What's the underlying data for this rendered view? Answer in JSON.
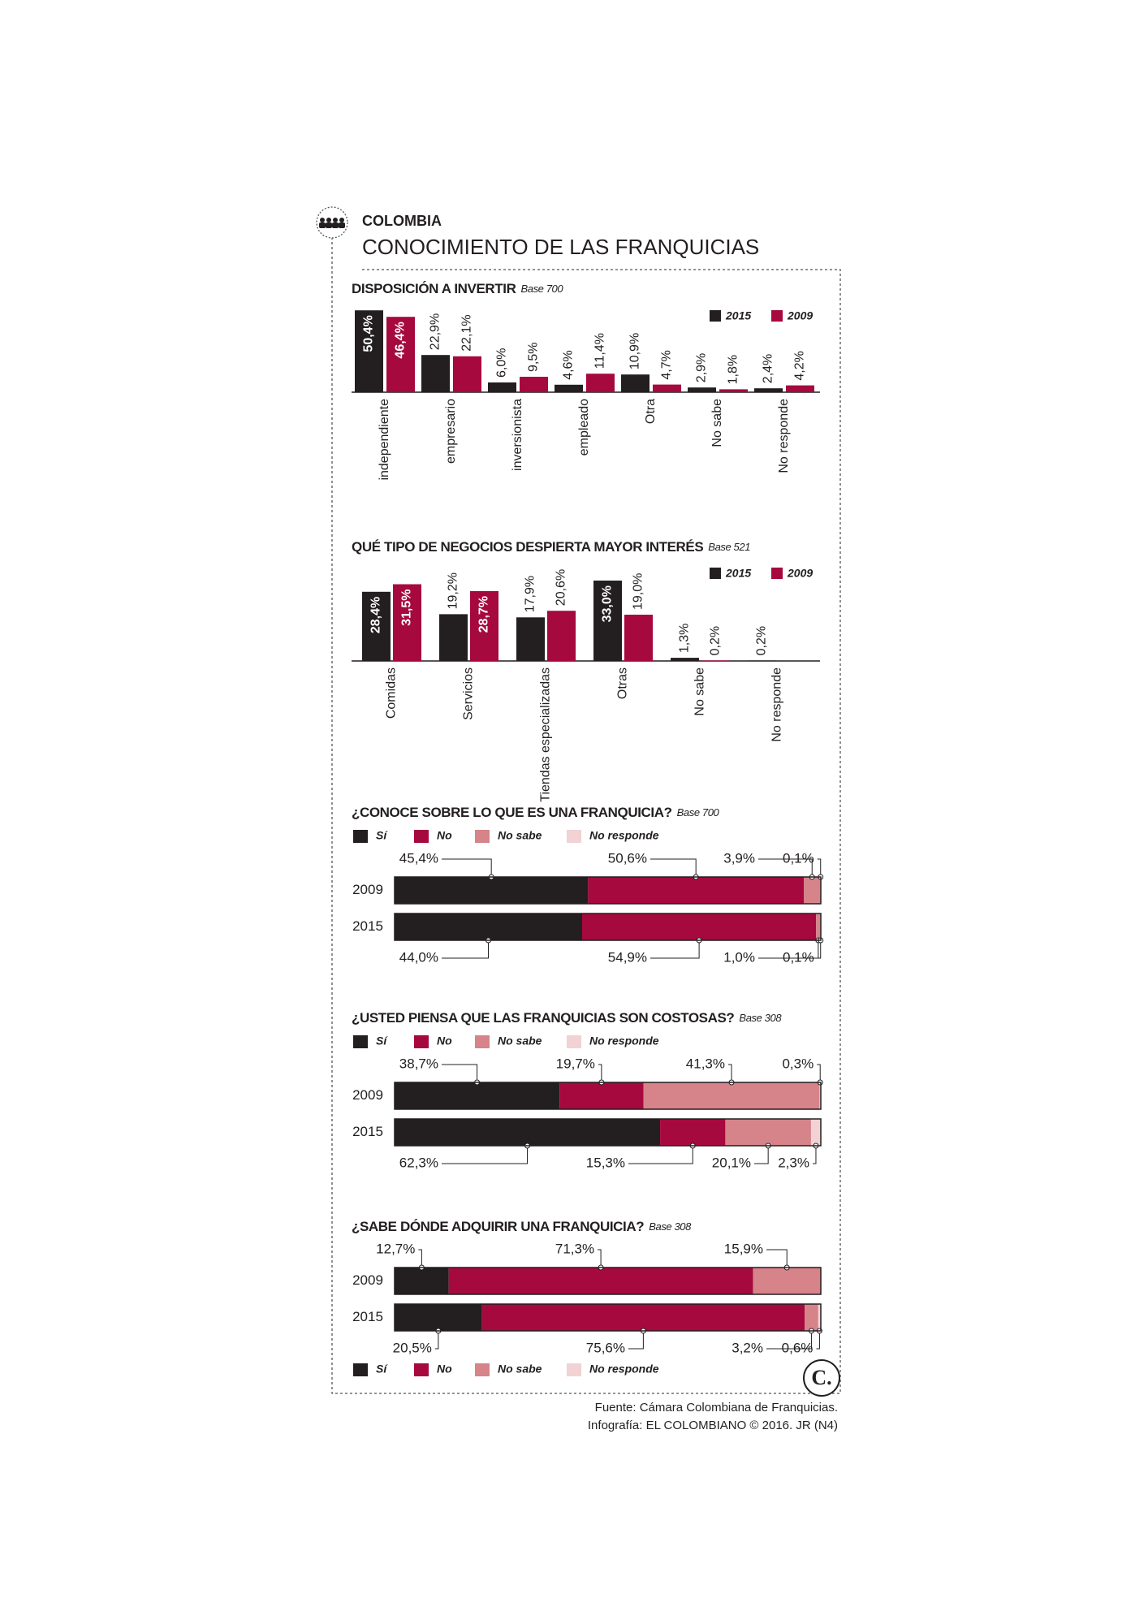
{
  "header": {
    "section": "COLOMBIA",
    "title": "CONOCIMIENTO DE LAS FRANQUICIAS"
  },
  "chart_data": [
    {
      "type": "bar",
      "title": "DISPOSICIÓN A INVERTIR",
      "subtitle": "Base 700",
      "legend": "top-right",
      "categories": [
        "independiente",
        "empresario",
        "inversionista",
        "empleado",
        "Otra",
        "No sabe",
        "No responde"
      ],
      "series": [
        {
          "name": "2015",
          "color": "#231f20",
          "values": [
            50.4,
            22.9,
            6.0,
            4.6,
            10.9,
            2.9,
            2.4
          ],
          "value_labels": [
            "50,4%",
            "22,9%",
            "6,0%",
            "4,6%",
            "10,9%",
            "2,9%",
            "2,4%"
          ]
        },
        {
          "name": "2009",
          "color": "#a6093d",
          "values": [
            46.4,
            22.1,
            9.5,
            11.4,
            4.7,
            1.8,
            4.2
          ],
          "value_labels": [
            "46,4%",
            "22,1%",
            "9,5%",
            "11,4%",
            "4,7%",
            "1,8%",
            "4,2%"
          ]
        }
      ]
    },
    {
      "type": "bar",
      "title": "QUÉ TIPO DE NEGOCIOS DESPIERTA MAYOR INTERÉS",
      "subtitle": "Base 521",
      "legend": "top-right",
      "categories": [
        "Comidas",
        "Servicios",
        "Tiendas especializadas",
        "Otras",
        "No sabe",
        "No responde"
      ],
      "series": [
        {
          "name": "2015",
          "color": "#231f20",
          "values": [
            28.4,
            19.2,
            17.9,
            33.0,
            1.3,
            0.2
          ],
          "value_labels": [
            "28,4%",
            "19,2%",
            "17,9%",
            "33,0%",
            "1,3%",
            "0,2%"
          ]
        },
        {
          "name": "2009",
          "color": "#a6093d",
          "values": [
            31.5,
            28.7,
            20.6,
            19.0,
            0.2,
            null
          ],
          "value_labels": [
            "31,5%",
            "28,7%",
            "20,6%",
            "19,0%",
            "0,2%",
            null
          ]
        }
      ]
    },
    {
      "type": "stacked_bar",
      "title": "¿CONOCE SOBRE LO QUE ES UNA FRANQUICIA?",
      "subtitle": "Base 700",
      "legend": "top-left",
      "categories": [
        "2009",
        "2015"
      ],
      "series": [
        {
          "name": "Sí",
          "color": "#231f20",
          "values": [
            45.4,
            44.0
          ],
          "value_labels": [
            "45,4%",
            "44,0%"
          ]
        },
        {
          "name": "No",
          "color": "#a6093d",
          "values": [
            50.6,
            54.9
          ],
          "value_labels": [
            "50,6%",
            "54,9%"
          ]
        },
        {
          "name": "No sabe",
          "color": "#d6838a",
          "values": [
            3.9,
            1.0
          ],
          "value_labels": [
            "3,9%",
            "1,0%"
          ]
        },
        {
          "name": "No responde",
          "color": "#f2d2d4",
          "values": [
            0.1,
            0.1
          ],
          "value_labels": [
            "0,1%",
            "0,1%"
          ]
        }
      ]
    },
    {
      "type": "stacked_bar",
      "title": "¿USTED PIENSA QUE LAS FRANQUICIAS SON COSTOSAS?",
      "subtitle": "Base 308",
      "legend": "top-left",
      "categories": [
        "2009",
        "2015"
      ],
      "series": [
        {
          "name": "Sí",
          "color": "#231f20",
          "values": [
            38.7,
            62.3
          ],
          "value_labels": [
            "38,7%",
            "62,3%"
          ]
        },
        {
          "name": "No",
          "color": "#a6093d",
          "values": [
            19.7,
            15.3
          ],
          "value_labels": [
            "19,7%",
            "15,3%"
          ]
        },
        {
          "name": "No sabe",
          "color": "#d6838a",
          "values": [
            41.3,
            20.1
          ],
          "value_labels": [
            "41,3%",
            "20,1%"
          ]
        },
        {
          "name": "No responde",
          "color": "#f2d2d4",
          "values": [
            0.3,
            2.3
          ],
          "value_labels": [
            "0,3%",
            "2,3%"
          ]
        }
      ]
    },
    {
      "type": "stacked_bar",
      "title": "¿SABE DÓNDE ADQUIRIR UNA FRANQUICIA?",
      "subtitle": "Base 308",
      "legend": "bottom-left",
      "categories": [
        "2009",
        "2015"
      ],
      "series": [
        {
          "name": "Sí",
          "color": "#231f20",
          "values": [
            12.7,
            20.5
          ],
          "value_labels": [
            "12,7%",
            "20,5%"
          ]
        },
        {
          "name": "No",
          "color": "#a6093d",
          "values": [
            71.3,
            75.6
          ],
          "value_labels": [
            "71,3%",
            "75,6%"
          ]
        },
        {
          "name": "No sabe",
          "color": "#d6838a",
          "values": [
            15.9,
            3.2
          ],
          "value_labels": [
            "15,9%",
            "3,2%"
          ]
        },
        {
          "name": "No responde",
          "color": "#f2d2d4",
          "values": [
            null,
            0.6
          ],
          "value_labels": [
            null,
            "0,6%"
          ]
        }
      ]
    }
  ],
  "footer": {
    "logo": "C.",
    "source": "Fuente: Cámara Colombiana de Franquicias.",
    "credit": "Infografía: EL COLOMBIANO © 2016. JR (N4)"
  }
}
